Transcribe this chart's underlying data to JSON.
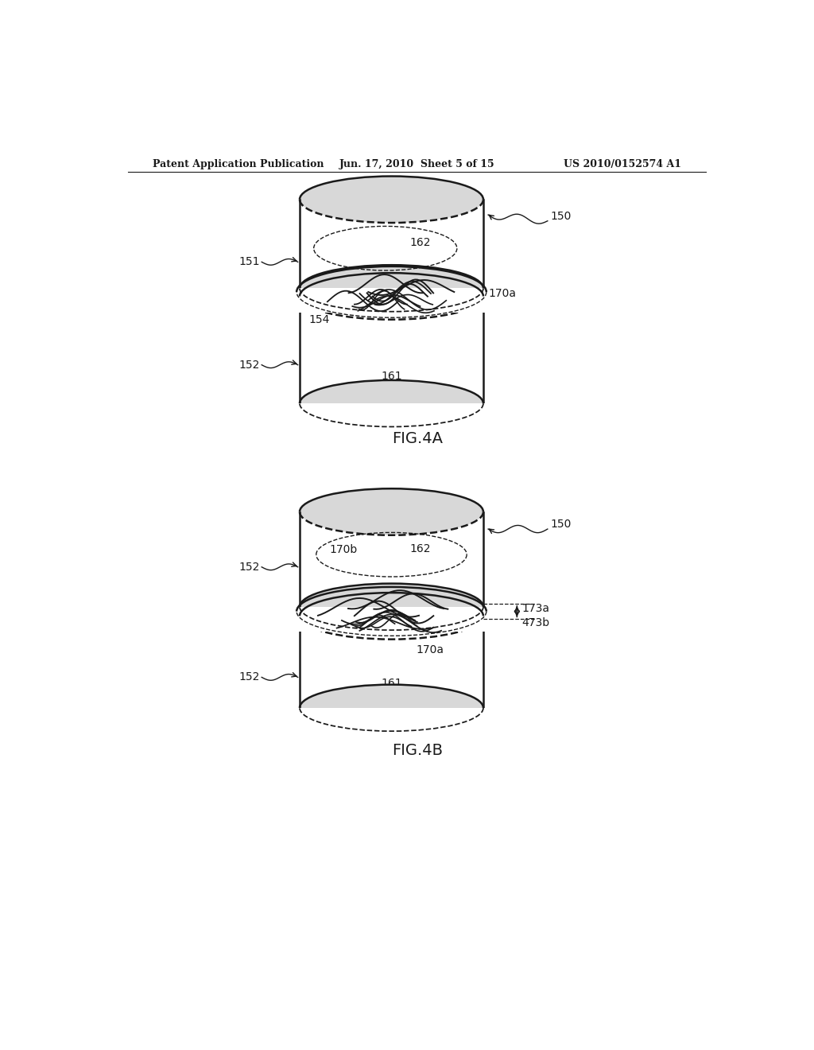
{
  "bg_color": "#ffffff",
  "line_color": "#1a1a1a",
  "text_color": "#1a1a1a",
  "header_left": "Patent Application Publication",
  "header_center": "Jun. 17, 2010  Sheet 5 of 15",
  "header_right": "US 2010/0152574 A1",
  "fig4a_label": "FIG.4A",
  "fig4b_label": "FIG.4B"
}
